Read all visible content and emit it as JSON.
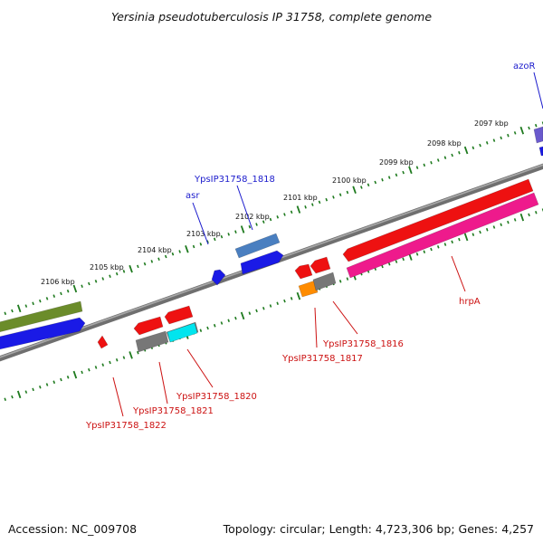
{
  "title": "Yersinia pseudotuberculosis IP 31758, complete genome",
  "footer": {
    "accession": "Accession: NC_009708",
    "summary": "Topology: circular; Length: 4,723,306 bp; Genes: 4,257"
  },
  "colors": {
    "forward_label": "#1a1acc",
    "reverse_label": "#cc1111",
    "tick": "#1e7a1e",
    "backbone": "#888888"
  },
  "ticks": [
    {
      "label": "2097 kbp"
    },
    {
      "label": "2098 kbp"
    },
    {
      "label": "2099 kbp"
    },
    {
      "label": "2100 kbp"
    },
    {
      "label": "2101 kbp"
    },
    {
      "label": "2102 kbp"
    },
    {
      "label": "2103 kbp"
    },
    {
      "label": "2104 kbp"
    },
    {
      "label": "2105 kbp"
    },
    {
      "label": "2106 kbp"
    }
  ],
  "forward_features": [
    {
      "color": "#1a1ae6"
    },
    {
      "color": "#6b8c2a"
    },
    {
      "color": "#1a1ae6"
    },
    {
      "color": "#4a7fc0"
    },
    {
      "color": "#1a1ae6"
    },
    {
      "color": "#6a5acd"
    }
  ],
  "reverse_features": [
    {
      "color": "#ee1111"
    },
    {
      "color": "#777777"
    },
    {
      "color": "#ee1111"
    },
    {
      "color": "#777777"
    },
    {
      "color": "#ee1111"
    },
    {
      "color": "#00e5ee"
    },
    {
      "color": "#ee1111"
    },
    {
      "color": "#ff8c00"
    },
    {
      "color": "#777777"
    },
    {
      "color": "#ee1111"
    },
    {
      "color": "#ee1111"
    },
    {
      "color": "#ee1a8c"
    }
  ],
  "labels": [
    {
      "text": "azoR",
      "strand": "forward"
    },
    {
      "text": "YpsIP31758_1818",
      "strand": "forward"
    },
    {
      "text": "asr",
      "strand": "forward"
    },
    {
      "text": "YpsIP31758_1816",
      "strand": "reverse"
    },
    {
      "text": "YpsIP31758_1817",
      "strand": "reverse"
    },
    {
      "text": "hrpA",
      "strand": "reverse"
    },
    {
      "text": "YpsIP31758_1820",
      "strand": "reverse"
    },
    {
      "text": "YpsIP31758_1821",
      "strand": "reverse"
    },
    {
      "text": "YpsIP31758_1822",
      "strand": "reverse"
    }
  ]
}
